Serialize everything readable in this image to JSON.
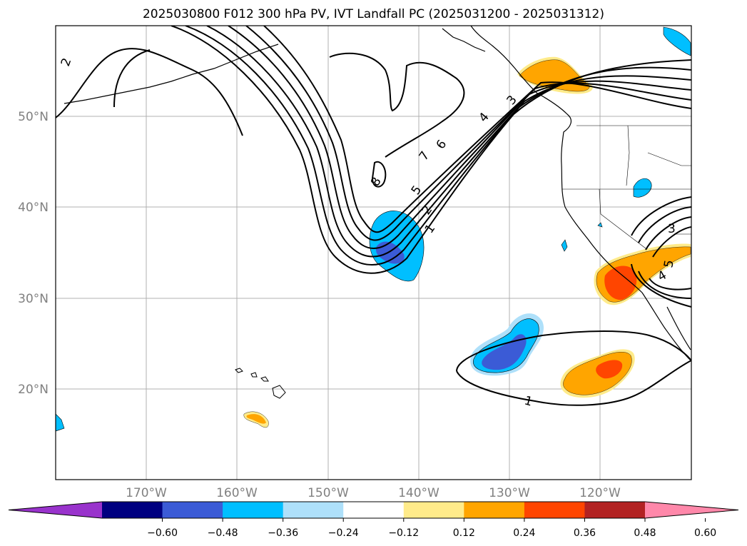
{
  "title": "2025030800 F012 300 hPa PV, IVT Landfall PC (2025031200 - 2025031312)",
  "map": {
    "lon_range": [
      -180,
      -110
    ],
    "lat_range": [
      10,
      60
    ],
    "lat_labels": [
      "50°N",
      "40°N",
      "30°N",
      "20°N"
    ],
    "lon_labels": [
      "170°W",
      "160°W",
      "150°W",
      "140°W",
      "130°W",
      "120°W"
    ],
    "pv_contour_labels": [
      "2",
      "8",
      "7",
      "6",
      "5",
      "4",
      "3",
      "2",
      "1",
      "3",
      "5",
      "4",
      "1"
    ]
  },
  "colorbar": {
    "ticks": [
      "−0.60",
      "−0.48",
      "−0.36",
      "−0.24",
      "−0.12",
      "0.12",
      "0.24",
      "0.36",
      "0.48",
      "0.60"
    ],
    "colors": [
      "#9933cc",
      "#000080",
      "#3b5bd6",
      "#00bfff",
      "#aee0fa",
      "#ffffff",
      "#ffeb8a",
      "#ffa500",
      "#ff4500",
      "#b22222",
      "#ff88aa"
    ]
  }
}
